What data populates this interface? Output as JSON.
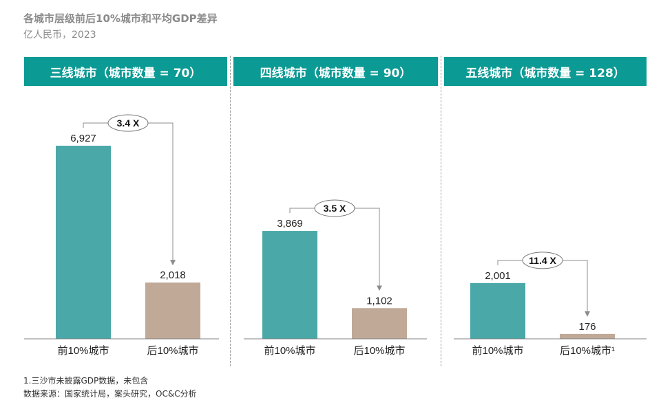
{
  "title": "各城市层级前后10%城市和平均GDP差异",
  "subtitle": "亿人民币，2023",
  "chart_data": {
    "type": "bar",
    "panels": [
      {
        "header": "三线城市（城市数量 = 70）",
        "categories": [
          "前10%城市",
          "后10%城市"
        ],
        "values": [
          6927,
          2018
        ],
        "value_labels": [
          "6,927",
          "2,018"
        ],
        "ratio_label": "3.4 X"
      },
      {
        "header": "四线城市（城市数量 = 90）",
        "categories": [
          "前10%城市",
          "后10%城市"
        ],
        "values": [
          3869,
          1102
        ],
        "value_labels": [
          "3,869",
          "1,102"
        ],
        "ratio_label": "3.5 X"
      },
      {
        "header": "五线城市（城市数量 = 128）",
        "categories": [
          "前10%城市",
          "后10%城市¹"
        ],
        "values": [
          2001,
          176
        ],
        "value_labels": [
          "2,001",
          "176"
        ],
        "ratio_label": "11.4 X"
      }
    ],
    "colors": {
      "top": "#4aa8a8",
      "bottom": "#c0a997",
      "header": "#0c9a94"
    }
  },
  "footnotes": [
    "1.三沙市未披露GDP数据，未包含",
    "数据来源：国家统计局，案头研究，OC&C分析"
  ]
}
